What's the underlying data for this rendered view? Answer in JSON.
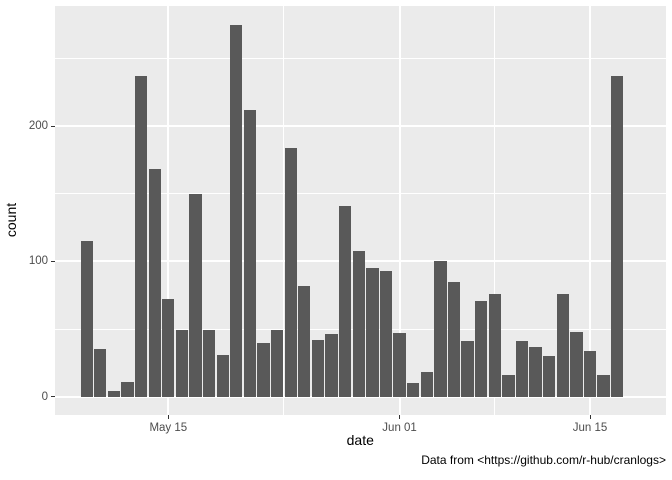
{
  "chart_data": {
    "type": "bar",
    "title": "",
    "xlabel": "date",
    "ylabel": "count",
    "caption": "Data from <https://github.com/r-hub/cranlogs>",
    "dates": [
      "May 09",
      "May 10",
      "May 11",
      "May 12",
      "May 13",
      "May 14",
      "May 15",
      "May 16",
      "May 17",
      "May 18",
      "May 19",
      "May 20",
      "May 21",
      "May 22",
      "May 23",
      "May 24",
      "May 25",
      "May 26",
      "May 27",
      "May 28",
      "May 29",
      "May 30",
      "May 31",
      "Jun 01",
      "Jun 02",
      "Jun 03",
      "Jun 04",
      "Jun 05",
      "Jun 06",
      "Jun 07",
      "Jun 08",
      "Jun 09",
      "Jun 10",
      "Jun 11",
      "Jun 12",
      "Jun 13",
      "Jun 14",
      "Jun 15",
      "Jun 16",
      "Jun 17"
    ],
    "values": [
      115,
      35,
      4,
      11,
      237,
      168,
      72,
      49,
      150,
      49,
      31,
      275,
      212,
      40,
      49,
      184,
      82,
      42,
      46,
      141,
      108,
      95,
      93,
      47,
      10,
      18,
      100,
      85,
      41,
      71,
      76,
      16,
      41,
      37,
      30,
      76,
      48,
      34,
      16,
      237
    ],
    "y_ticks": [
      0,
      100,
      200
    ],
    "y_minor_ticks": [
      50,
      150,
      250
    ],
    "x_ticks": [
      {
        "label": "May 15",
        "index": 6
      },
      {
        "label": "Jun 01",
        "index": 23
      },
      {
        "label": "Jun 15",
        "index": 37
      }
    ],
    "ylim": [
      0,
      289
    ],
    "grid": true,
    "legend": "none",
    "colors": {
      "bar": "#595959",
      "panel_bg": "#EBEBEB",
      "grid": "#FFFFFF",
      "tick_text": "#4D4D4D",
      "title_text": "#000000"
    }
  }
}
